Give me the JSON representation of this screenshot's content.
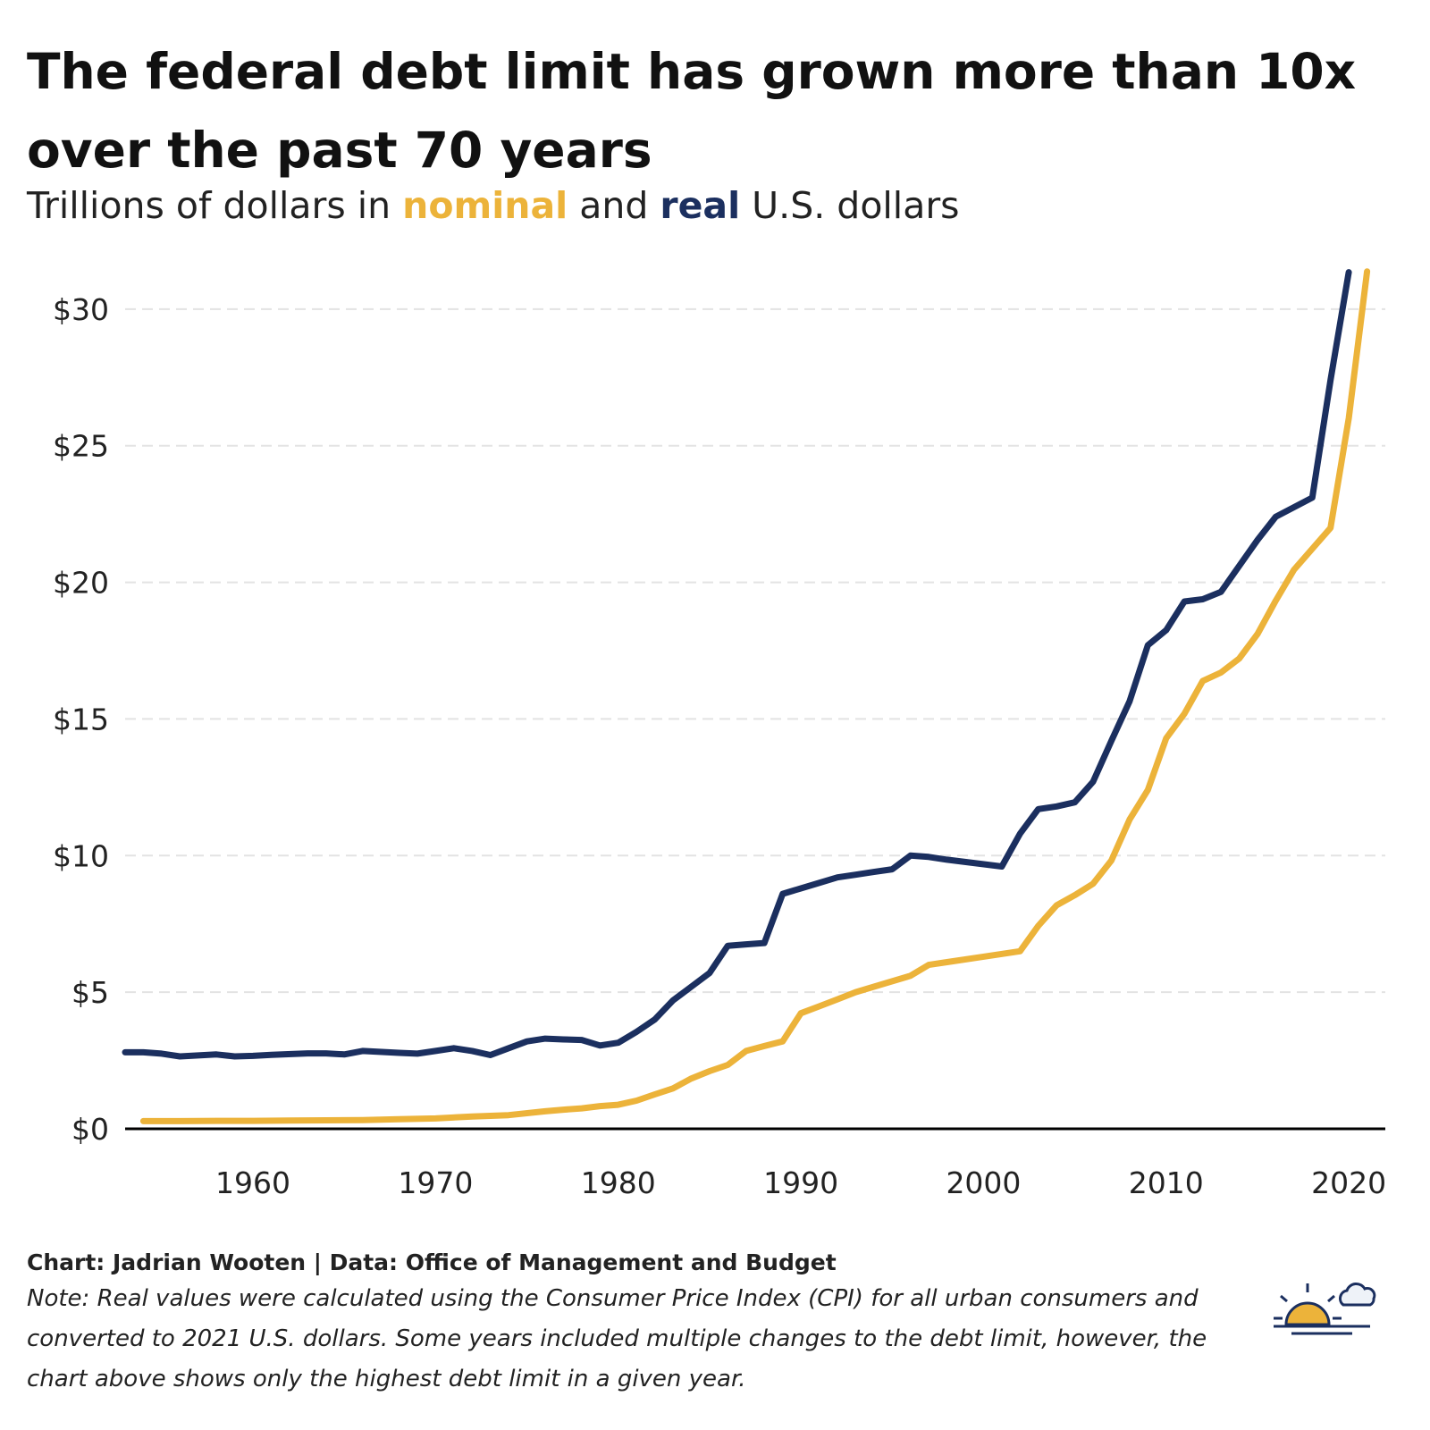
{
  "title": "The federal debt limit has grown more than 10x over the past 70 years",
  "subtitle": {
    "prefix": "Trillions of dollars in ",
    "nominal": "nominal",
    "middle": " and ",
    "real": "real",
    "suffix": " U.S. dollars"
  },
  "credit": "Chart: Jadrian Wooten | Data: Office of Management and Budget",
  "note": "Note: Real values were calculated using the Consumer Price Index (CPI) for all urban consumers and converted to 2021 U.S. dollars. Some years included multiple changes to the debt limit, however, the chart above shows only the highest debt limit in a given year.",
  "logo_icon": "sunrise-cloud-icon",
  "colors": {
    "nominal": "#ecb33a",
    "real": "#1b2f5f",
    "grid": "#e3e3e3",
    "axis": "#000000"
  },
  "chart_data": {
    "type": "line",
    "xlim": [
      1953,
      2022
    ],
    "ylim": [
      0,
      31.5
    ],
    "x_ticks": [
      1960,
      1970,
      1980,
      1990,
      2000,
      2010,
      2020
    ],
    "x_tick_labels": [
      "1960",
      "1970",
      "1980",
      "1990",
      "2000",
      "2010",
      "2020"
    ],
    "y_ticks": [
      0,
      5,
      10,
      15,
      20,
      25,
      30
    ],
    "y_tick_labels": [
      "$0",
      "$5",
      "$10",
      "$15",
      "$20",
      "$25",
      "$30"
    ],
    "grid": "horizontal dashed",
    "series": [
      {
        "name": "nominal",
        "color": "#ecb33a",
        "points": [
          [
            1954,
            0.28
          ],
          [
            1955,
            0.28
          ],
          [
            1956,
            0.28
          ],
          [
            1958,
            0.29
          ],
          [
            1960,
            0.29
          ],
          [
            1962,
            0.3
          ],
          [
            1964,
            0.31
          ],
          [
            1966,
            0.32
          ],
          [
            1968,
            0.35
          ],
          [
            1970,
            0.38
          ],
          [
            1972,
            0.45
          ],
          [
            1974,
            0.5
          ],
          [
            1976,
            0.64
          ],
          [
            1977,
            0.7
          ],
          [
            1978,
            0.75
          ],
          [
            1979,
            0.83
          ],
          [
            1980,
            0.88
          ],
          [
            1981,
            1.03
          ],
          [
            1982,
            1.26
          ],
          [
            1983,
            1.48
          ],
          [
            1984,
            1.84
          ],
          [
            1985,
            2.11
          ],
          [
            1986,
            2.34
          ],
          [
            1987,
            2.85
          ],
          [
            1988,
            3.03
          ],
          [
            1989,
            3.2
          ],
          [
            1990,
            4.23
          ],
          [
            1991,
            4.48
          ],
          [
            1992,
            4.74
          ],
          [
            1993,
            5.0
          ],
          [
            1994,
            5.2
          ],
          [
            1995,
            5.4
          ],
          [
            1996,
            5.6
          ],
          [
            1997,
            6.0
          ],
          [
            1998,
            6.1
          ],
          [
            2000,
            6.3
          ],
          [
            2002,
            6.5
          ],
          [
            2003,
            7.43
          ],
          [
            2004,
            8.18
          ],
          [
            2005,
            8.55
          ],
          [
            2006,
            8.97
          ],
          [
            2007,
            9.82
          ],
          [
            2008,
            11.32
          ],
          [
            2009,
            12.4
          ],
          [
            2010,
            14.29
          ],
          [
            2011,
            15.19
          ],
          [
            2012,
            16.39
          ],
          [
            2013,
            16.7
          ],
          [
            2014,
            17.21
          ],
          [
            2015,
            18.11
          ],
          [
            2016,
            19.33
          ],
          [
            2017,
            20.46
          ],
          [
            2018,
            21.23
          ],
          [
            2019,
            21.99
          ],
          [
            2020,
            26.0
          ],
          [
            2021,
            31.38
          ]
        ]
      },
      {
        "name": "real",
        "color": "#1b2f5f",
        "points": [
          [
            1953,
            2.8
          ],
          [
            1954,
            2.8
          ],
          [
            1955,
            2.75
          ],
          [
            1956,
            2.65
          ],
          [
            1958,
            2.72
          ],
          [
            1959,
            2.65
          ],
          [
            1960,
            2.67
          ],
          [
            1961,
            2.71
          ],
          [
            1963,
            2.76
          ],
          [
            1964,
            2.76
          ],
          [
            1965,
            2.72
          ],
          [
            1966,
            2.85
          ],
          [
            1968,
            2.78
          ],
          [
            1969,
            2.75
          ],
          [
            1970,
            2.85
          ],
          [
            1971,
            2.95
          ],
          [
            1972,
            2.85
          ],
          [
            1973,
            2.7
          ],
          [
            1974,
            2.95
          ],
          [
            1975,
            3.2
          ],
          [
            1976,
            3.3
          ],
          [
            1977,
            3.27
          ],
          [
            1978,
            3.25
          ],
          [
            1979,
            3.05
          ],
          [
            1980,
            3.15
          ],
          [
            1981,
            3.55
          ],
          [
            1982,
            4.0
          ],
          [
            1983,
            4.7
          ],
          [
            1984,
            5.2
          ],
          [
            1985,
            5.7
          ],
          [
            1986,
            6.7
          ],
          [
            1987,
            6.75
          ],
          [
            1988,
            6.8
          ],
          [
            1989,
            8.6
          ],
          [
            1990,
            8.8
          ],
          [
            1991,
            9.0
          ],
          [
            1992,
            9.2
          ],
          [
            1993,
            9.3
          ],
          [
            1994,
            9.4
          ],
          [
            1995,
            9.5
          ],
          [
            1996,
            10.0
          ],
          [
            1997,
            9.95
          ],
          [
            1998,
            9.85
          ],
          [
            2001,
            9.6
          ],
          [
            2002,
            10.8
          ],
          [
            2003,
            11.7
          ],
          [
            2004,
            11.8
          ],
          [
            2005,
            11.95
          ],
          [
            2006,
            12.7
          ],
          [
            2007,
            14.2
          ],
          [
            2008,
            15.65
          ],
          [
            2009,
            17.7
          ],
          [
            2010,
            18.25
          ],
          [
            2011,
            19.3
          ],
          [
            2012,
            19.38
          ],
          [
            2013,
            19.65
          ],
          [
            2014,
            20.6
          ],
          [
            2015,
            21.55
          ],
          [
            2016,
            22.4
          ],
          [
            2018,
            23.1
          ],
          [
            2019,
            27.4
          ],
          [
            2020,
            31.35
          ]
        ]
      }
    ]
  }
}
